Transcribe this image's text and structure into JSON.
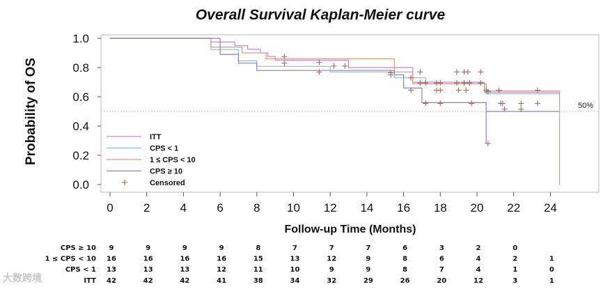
{
  "chart_data": {
    "type": "line",
    "title": "Overall Survival Kaplan-Meier curve",
    "xlabel": "Follow-up Time (Months)",
    "ylabel": "Probability of OS",
    "xlim": [
      -0.5,
      26
    ],
    "ylim": [
      -0.03,
      1.04
    ],
    "x_ticks": [
      "0",
      "2",
      "4",
      "6",
      "8",
      "10",
      "12",
      "14",
      "16",
      "18",
      "20",
      "22",
      "24"
    ],
    "y_ticks": [
      "0.0",
      "0.2",
      "0.4",
      "0.6",
      "0.8",
      "1.0"
    ],
    "reference_line": {
      "y": 0.5,
      "label": "50%"
    },
    "legend": {
      "placement": "bottom-left",
      "censored_label": "Censored"
    },
    "series": [
      {
        "name": "ITT",
        "color": "#c58ad0",
        "steps": [
          [
            0,
            1.0
          ],
          [
            5.5,
            0.975
          ],
          [
            6.8,
            0.95
          ],
          [
            7.5,
            0.925
          ],
          [
            8.2,
            0.9
          ],
          [
            8.6,
            0.875
          ],
          [
            9.0,
            0.85
          ],
          [
            13.0,
            0.8
          ],
          [
            16.5,
            0.7
          ],
          [
            20.4,
            0.63
          ],
          [
            24.5,
            0.63
          ]
        ]
      },
      {
        "name": "CPS < 1",
        "color": "#85c4b8",
        "steps": [
          [
            0,
            1.0
          ],
          [
            5.5,
            0.923
          ],
          [
            7.0,
            0.846
          ],
          [
            8.0,
            0.808
          ],
          [
            9.5,
            0.808
          ],
          [
            12.0,
            0.77
          ],
          [
            15.5,
            0.73
          ],
          [
            17.2,
            0.69
          ],
          [
            20.5,
            0.62
          ],
          [
            24.5,
            0.62
          ]
        ]
      },
      {
        "name": "1 ≤ CPS < 10",
        "color": "#e09a80",
        "steps": [
          [
            0,
            1.0
          ],
          [
            5.5,
            0.94
          ],
          [
            6.0,
            0.94
          ],
          [
            7.2,
            0.9
          ],
          [
            8.5,
            0.86
          ],
          [
            9.3,
            0.86
          ],
          [
            15.5,
            0.77
          ],
          [
            16.5,
            0.69
          ],
          [
            17.0,
            0.69
          ],
          [
            20.5,
            0.64
          ],
          [
            24.5,
            0.64
          ],
          [
            24.5,
            0.0
          ]
        ]
      },
      {
        "name": "CPS ≥ 10",
        "color": "#8a7fc8",
        "steps": [
          [
            0,
            1.0
          ],
          [
            6.0,
            0.89
          ],
          [
            7.0,
            0.83
          ],
          [
            8.0,
            0.78
          ],
          [
            9.5,
            0.78
          ],
          [
            15.5,
            0.75
          ],
          [
            16.0,
            0.66
          ],
          [
            17.0,
            0.56
          ],
          [
            20.2,
            0.56
          ],
          [
            20.5,
            0.28
          ],
          [
            20.5,
            0.5
          ],
          [
            24.5,
            0.5
          ]
        ]
      }
    ],
    "censored": {
      "marker": "+",
      "color": "#9a6a6a",
      "points": [
        [
          9.5,
          0.875
        ],
        [
          9.5,
          0.83
        ],
        [
          11.4,
          0.835
        ],
        [
          11.4,
          0.77
        ],
        [
          12.2,
          0.81
        ],
        [
          12.8,
          0.81
        ],
        [
          15.3,
          0.765
        ],
        [
          15.3,
          0.75
        ],
        [
          16.4,
          0.73
        ],
        [
          16.4,
          0.645
        ],
        [
          16.9,
          0.77
        ],
        [
          16.9,
          0.695
        ],
        [
          17.2,
          0.695
        ],
        [
          17.2,
          0.555
        ],
        [
          17.8,
          0.695
        ],
        [
          17.8,
          0.645
        ],
        [
          18.0,
          0.695
        ],
        [
          18.0,
          0.645
        ],
        [
          18.0,
          0.555
        ],
        [
          18.9,
          0.77
        ],
        [
          18.9,
          0.695
        ],
        [
          19.0,
          0.645
        ],
        [
          19.3,
          0.77
        ],
        [
          19.3,
          0.695
        ],
        [
          19.4,
          0.645
        ],
        [
          19.5,
          0.77
        ],
        [
          19.6,
          0.695
        ],
        [
          19.7,
          0.555
        ],
        [
          20.2,
          0.77
        ],
        [
          20.2,
          0.695
        ],
        [
          20.5,
          0.645
        ],
        [
          20.6,
          0.635
        ],
        [
          20.6,
          0.28
        ],
        [
          21.2,
          0.645
        ],
        [
          21.3,
          0.555
        ],
        [
          21.4,
          0.555
        ],
        [
          21.5,
          0.515
        ],
        [
          22.4,
          0.555
        ],
        [
          22.4,
          0.515
        ],
        [
          23.3,
          0.645
        ],
        [
          23.3,
          0.555
        ]
      ]
    },
    "risk_table": {
      "x": [
        0,
        2,
        4,
        6,
        8,
        10,
        12,
        14,
        16,
        18,
        20,
        22,
        24
      ],
      "rows": [
        {
          "label": "CPS ≥ 10",
          "values": [
            "9",
            "9",
            "9",
            "9",
            "8",
            "7",
            "7",
            "7",
            "6",
            "3",
            "2",
            "0",
            ""
          ]
        },
        {
          "label": "1 ≤ CPS < 10",
          "values": [
            "16",
            "16",
            "16",
            "16",
            "15",
            "13",
            "12",
            "9",
            "8",
            "6",
            "4",
            "2",
            "1"
          ]
        },
        {
          "label": "CPS < 1",
          "values": [
            "13",
            "13",
            "13",
            "12",
            "11",
            "10",
            "9",
            "9",
            "8",
            "7",
            "4",
            "1",
            "0"
          ]
        },
        {
          "label": "ITT",
          "values": [
            "42",
            "42",
            "42",
            "41",
            "38",
            "34",
            "32",
            "29",
            "26",
            "20",
            "12",
            "3",
            "1"
          ]
        }
      ]
    }
  },
  "watermark": "大数跨境"
}
